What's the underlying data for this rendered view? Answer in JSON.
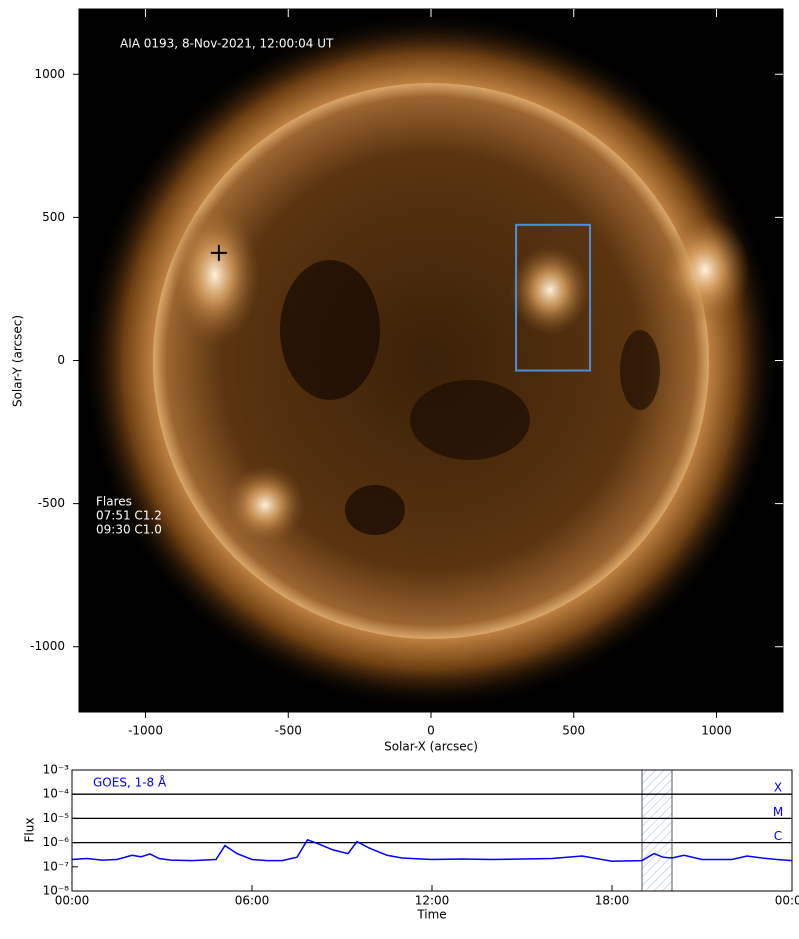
{
  "chart_data": [
    {
      "type": "image",
      "title": "AIA 0193, 8-Nov-2021, 12:00:04 UT",
      "xlabel": "Solar-X (arcsec)",
      "ylabel": "Solar-Y (arcsec)",
      "xlim": [
        -1233,
        1233
      ],
      "ylim": [
        -1228,
        1228
      ],
      "xticks": [
        -1000,
        -500,
        0,
        500,
        1000
      ],
      "yticks": [
        -1000,
        -500,
        0,
        500,
        1000
      ],
      "annotations": [
        "Flares",
        "07:51 C1.2",
        "09:30 C1.0"
      ],
      "box": {
        "x": [
          298,
          557
        ],
        "y": [
          -35,
          474
        ],
        "color": "#4a8fd9"
      },
      "marker": {
        "x": -743,
        "y": 376,
        "color": "#000000"
      }
    },
    {
      "type": "line",
      "title": "GOES, 1-8 Å",
      "xlabel": "Time",
      "ylabel": "Flux",
      "log_scale": true,
      "xlim": [
        0,
        24
      ],
      "xticks": [
        {
          "value": 0,
          "label": "00:00"
        },
        {
          "value": 6,
          "label": "06:00"
        },
        {
          "value": 12,
          "label": "12:00"
        },
        {
          "value": 18,
          "label": "18:00"
        },
        {
          "value": 24,
          "label": "00:00"
        }
      ],
      "ylim": [
        1e-08,
        0.001
      ],
      "yticks": [
        {
          "value": 1e-08,
          "label": "10⁻⁸"
        },
        {
          "value": 1e-07,
          "label": "10⁻⁷"
        },
        {
          "value": 1e-06,
          "label": "10⁻⁶"
        },
        {
          "value": 1e-05,
          "label": "10⁻⁵"
        },
        {
          "value": 0.0001,
          "label": "10⁻⁴"
        },
        {
          "value": 0.001,
          "label": "10⁻³"
        }
      ],
      "levels": [
        {
          "value": 0.0001,
          "label": "X"
        },
        {
          "value": 1e-05,
          "label": "M"
        },
        {
          "value": 1e-06,
          "label": "C"
        }
      ],
      "highlight": [
        19.0,
        20.0
      ],
      "series": [
        {
          "name": "GOES, 1-8 Å",
          "color": "#0000ff",
          "x": [
            0,
            0.5,
            1,
            1.5,
            2,
            2.3,
            2.6,
            2.9,
            3.3,
            4,
            4.8,
            5.1,
            5.5,
            6,
            6.5,
            7,
            7.5,
            7.85,
            8.2,
            8.7,
            9.2,
            9.5,
            9.9,
            10.5,
            11,
            12,
            13,
            14,
            15,
            16,
            17,
            18,
            19,
            19.4,
            19.7,
            20,
            20.4,
            21,
            22,
            22.5,
            23,
            23.5,
            24
          ],
          "values": [
            2e-07,
            2.2e-07,
            1.9e-07,
            2e-07,
            3e-07,
            2.6e-07,
            3.4e-07,
            2.2e-07,
            1.9e-07,
            1.8e-07,
            2e-07,
            7.5e-07,
            3.5e-07,
            2e-07,
            1.8e-07,
            1.8e-07,
            2.5e-07,
            1.3e-06,
            9e-07,
            5e-07,
            3.5e-07,
            1.1e-06,
            6e-07,
            3e-07,
            2.3e-07,
            2e-07,
            2.1e-07,
            2e-07,
            2.1e-07,
            2.2e-07,
            2.8e-07,
            1.7e-07,
            1.8e-07,
            3.5e-07,
            2.5e-07,
            2.3e-07,
            3e-07,
            2e-07,
            2e-07,
            2.8e-07,
            2.3e-07,
            2e-07,
            1.8e-07
          ]
        }
      ]
    }
  ]
}
